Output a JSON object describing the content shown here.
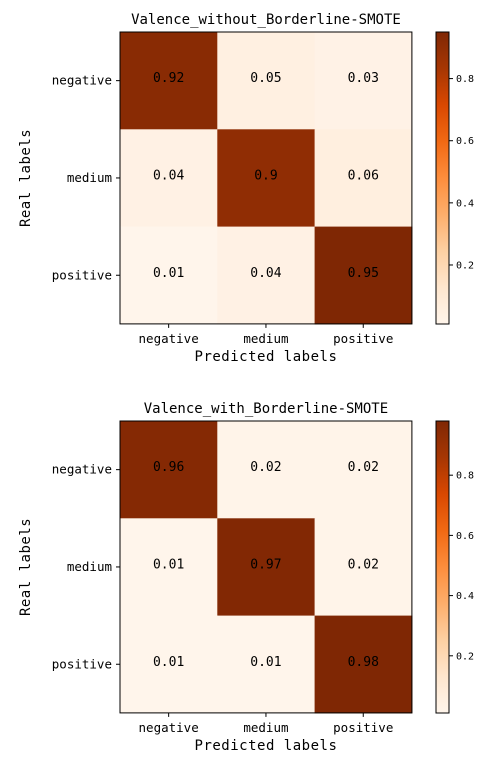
{
  "chart_data": [
    {
      "type": "heatmap",
      "title": "Valence_without_Borderline-SMOTE",
      "xlabel": "Predicted labels",
      "ylabel": "Real labels",
      "x_categories": [
        "negative",
        "medium",
        "positive"
      ],
      "y_categories": [
        "negative",
        "medium",
        "positive"
      ],
      "values": [
        [
          0.92,
          0.05,
          0.03
        ],
        [
          0.04,
          0.9,
          0.06
        ],
        [
          0.01,
          0.04,
          0.95
        ]
      ],
      "colormap": "Oranges",
      "colorbar_ticks": [
        "0.2",
        "0.4",
        "0.6",
        "0.8"
      ],
      "colorbar_range": [
        0.01,
        0.95
      ]
    },
    {
      "type": "heatmap",
      "title": "Valence_with_Borderline-SMOTE",
      "xlabel": "Predicted labels",
      "ylabel": "Real labels",
      "x_categories": [
        "negative",
        "medium",
        "positive"
      ],
      "y_categories": [
        "negative",
        "medium",
        "positive"
      ],
      "values": [
        [
          0.96,
          0.02,
          0.02
        ],
        [
          0.01,
          0.97,
          0.02
        ],
        [
          0.01,
          0.01,
          0.98
        ]
      ],
      "colormap": "Oranges",
      "colorbar_ticks": [
        "0.2",
        "0.4",
        "0.6",
        "0.8"
      ],
      "colorbar_range": [
        0.01,
        0.98
      ]
    }
  ],
  "colors": {
    "low": "#fff5eb",
    "high": "#7f2704"
  }
}
